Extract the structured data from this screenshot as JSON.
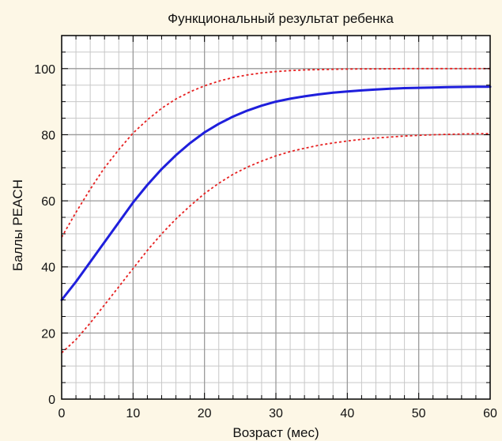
{
  "chart_data": {
    "type": "line",
    "title": "Функциональный результат ребенка",
    "xlabel": "Возраст (мес)",
    "ylabel": "Баллы PEACH",
    "xlim": [
      0,
      60
    ],
    "ylim": [
      0,
      110
    ],
    "x_ticks": [
      0,
      10,
      20,
      30,
      40,
      50,
      60
    ],
    "y_ticks": [
      0,
      20,
      40,
      60,
      80,
      100
    ],
    "grid": true,
    "series": [
      {
        "style": "solid",
        "color": "#1f1fdc",
        "x": [
          0,
          2,
          4,
          6,
          8,
          10,
          12,
          14,
          16,
          18,
          20,
          22,
          24,
          26,
          28,
          30,
          32,
          34,
          36,
          38,
          40,
          42,
          44,
          46,
          48,
          50,
          52,
          54,
          56,
          58,
          60
        ],
        "y": [
          30,
          35.5,
          41.5,
          47.5,
          53.5,
          59.5,
          64.8,
          69.6,
          73.8,
          77.5,
          80.7,
          83.3,
          85.5,
          87.3,
          88.8,
          90.0,
          90.9,
          91.6,
          92.2,
          92.7,
          93.1,
          93.4,
          93.7,
          93.9,
          94.1,
          94.2,
          94.3,
          94.4,
          94.45,
          94.5,
          94.5
        ]
      },
      {
        "style": "dotted",
        "color": "#e62020",
        "x": [
          0,
          2,
          4,
          6,
          8,
          10,
          12,
          14,
          16,
          18,
          20,
          22,
          24,
          26,
          28,
          30,
          32,
          34,
          36,
          38,
          40,
          42,
          44,
          46,
          48,
          50,
          52,
          54,
          56,
          58,
          60
        ],
        "y": [
          49,
          56.5,
          63.5,
          70,
          75.5,
          80.5,
          84.5,
          88,
          90.8,
          93,
          94.8,
          96.2,
          97.3,
          98.1,
          98.7,
          99.1,
          99.4,
          99.6,
          99.7,
          99.8,
          99.85,
          99.9,
          99.9,
          99.95,
          100,
          100,
          100,
          100,
          100,
          100,
          100
        ]
      },
      {
        "style": "dotted",
        "color": "#e62020",
        "x": [
          0,
          2,
          4,
          6,
          8,
          10,
          12,
          14,
          16,
          18,
          20,
          22,
          24,
          26,
          28,
          30,
          32,
          34,
          36,
          38,
          40,
          42,
          44,
          46,
          48,
          50,
          52,
          54,
          56,
          58,
          60
        ],
        "y": [
          14,
          18,
          23,
          28.5,
          34,
          39.5,
          45,
          50,
          54.5,
          58.5,
          62.2,
          65.3,
          68,
          70.2,
          72,
          73.6,
          74.9,
          75.9,
          76.8,
          77.5,
          78.1,
          78.6,
          79,
          79.3,
          79.6,
          79.8,
          80,
          80.1,
          80.2,
          80.3,
          80.3
        ]
      }
    ]
  }
}
